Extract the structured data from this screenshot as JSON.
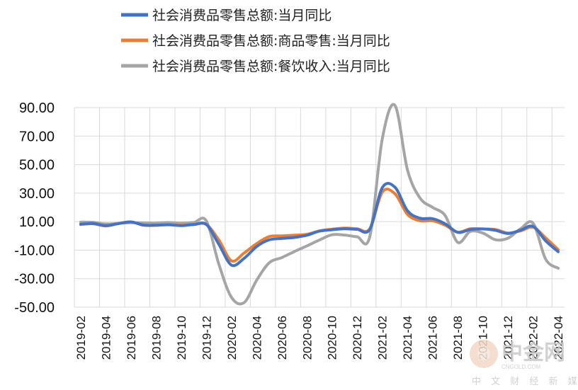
{
  "chart_data": {
    "type": "line",
    "title": "",
    "xlabel": "",
    "ylabel": "",
    "ylim": [
      -50,
      100
    ],
    "yticks": [
      90,
      70,
      50,
      30,
      10,
      -10,
      -30,
      -50
    ],
    "ytick_labels": [
      "90.00",
      "70.00",
      "50.00",
      "30.00",
      "10.00",
      "-10.00",
      "-30.00",
      "-50.00"
    ],
    "grid": true,
    "legend_placement": "top-center",
    "x": [
      "2019-02",
      "2019-03",
      "2019-04",
      "2019-05",
      "2019-06",
      "2019-07",
      "2019-08",
      "2019-09",
      "2019-10",
      "2019-11",
      "2019-12",
      "2020-01",
      "2020-02",
      "2020-03",
      "2020-04",
      "2020-05",
      "2020-06",
      "2020-07",
      "2020-08",
      "2020-09",
      "2020-10",
      "2020-11",
      "2020-12",
      "2021-01",
      "2021-02",
      "2021-03",
      "2021-04",
      "2021-05",
      "2021-06",
      "2021-07",
      "2021-08",
      "2021-09",
      "2021-10",
      "2021-11",
      "2021-12",
      "2022-01",
      "2022-02",
      "2022-03",
      "2022-04"
    ],
    "xtick_labels": [
      "2019-02",
      "2019-04",
      "2019-06",
      "2019-08",
      "2019-10",
      "2019-12",
      "2020-02",
      "2020-04",
      "2020-06",
      "2020-08",
      "2020-10",
      "2020-12",
      "2021-02",
      "2021-04",
      "2021-06",
      "2021-08",
      "2021-10",
      "2021-12",
      "2022-02",
      "2022-04"
    ],
    "series": [
      {
        "name": "社会消费品零售总额:当月同比",
        "color": "#4472C4",
        "values": [
          8.2,
          8.7,
          7.2,
          8.6,
          9.8,
          7.6,
          7.5,
          7.8,
          7.2,
          8.0,
          8.0,
          -6.0,
          -20.5,
          -15.8,
          -7.5,
          -2.8,
          -1.8,
          -1.1,
          0.5,
          3.3,
          4.3,
          5.0,
          4.6,
          4.6,
          33.8,
          34.2,
          17.7,
          12.4,
          12.1,
          8.5,
          2.5,
          4.4,
          4.9,
          3.9,
          1.7,
          4.0,
          6.7,
          -3.5,
          -11.1
        ]
      },
      {
        "name": "社会消费品零售总额:商品零售:当月同比",
        "color": "#ED7D31",
        "values": [
          8.0,
          8.5,
          7.0,
          8.7,
          9.8,
          7.5,
          7.4,
          7.9,
          7.4,
          8.0,
          8.0,
          -3.0,
          -17.5,
          -12.0,
          -5.4,
          -0.5,
          0.0,
          0.5,
          1.1,
          3.5,
          4.7,
          5.5,
          5.0,
          5.0,
          30.7,
          29.6,
          15.1,
          10.6,
          10.6,
          7.5,
          2.6,
          5.0,
          4.8,
          4.5,
          2.0,
          3.5,
          6.1,
          -1.5,
          -9.7
        ]
      },
      {
        "name": "社会消费品零售总额:餐饮收入:当月同比",
        "color": "#A5A5A5",
        "values": [
          9.7,
          9.5,
          8.4,
          8.8,
          9.3,
          9.1,
          9.0,
          9.4,
          8.9,
          9.4,
          10.5,
          -20.0,
          -43.1,
          -46.8,
          -31.1,
          -18.9,
          -15.2,
          -11.0,
          -7.0,
          -2.9,
          0.8,
          0.6,
          -0.6,
          -0.6,
          68.0,
          91.6,
          46.4,
          26.6,
          20.0,
          14.3,
          -4.5,
          3.1,
          2.0,
          -2.7,
          -1.6,
          5.0,
          8.9,
          -16.4,
          -22.7
        ]
      }
    ],
    "watermark": {
      "main": "中金网",
      "sub": "CNGOLD.COM",
      "cn": "中 文 财 经 新 媒 体"
    }
  }
}
